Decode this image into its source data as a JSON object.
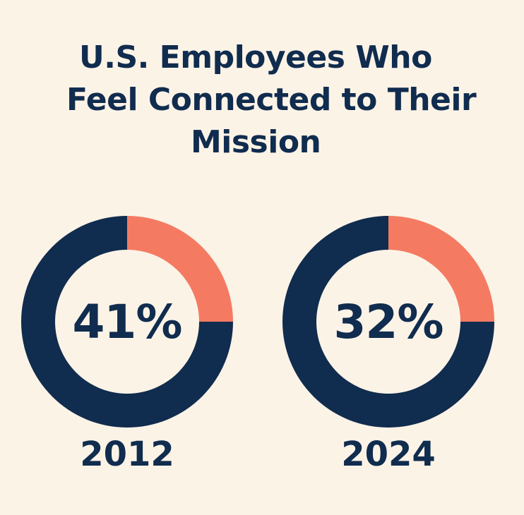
{
  "title_lines": [
    "U.S. Employees Who",
    "Feel Connected to Their",
    "Mission"
  ],
  "colors": {
    "background": "#fcf3e7",
    "primary": "#102c4e",
    "accent": "#f47b62"
  },
  "chart_data": [
    {
      "type": "pie",
      "title": "U.S. Employees Who Feel Connected to Their Mission",
      "category": "2012",
      "center_label": "41%",
      "value_percent": 41,
      "accent_segment_percent": 25
    },
    {
      "type": "pie",
      "title": "U.S. Employees Who Feel Connected to Their Mission",
      "category": "2024",
      "center_label": "32%",
      "value_percent": 32,
      "accent_segment_percent": 25
    }
  ]
}
